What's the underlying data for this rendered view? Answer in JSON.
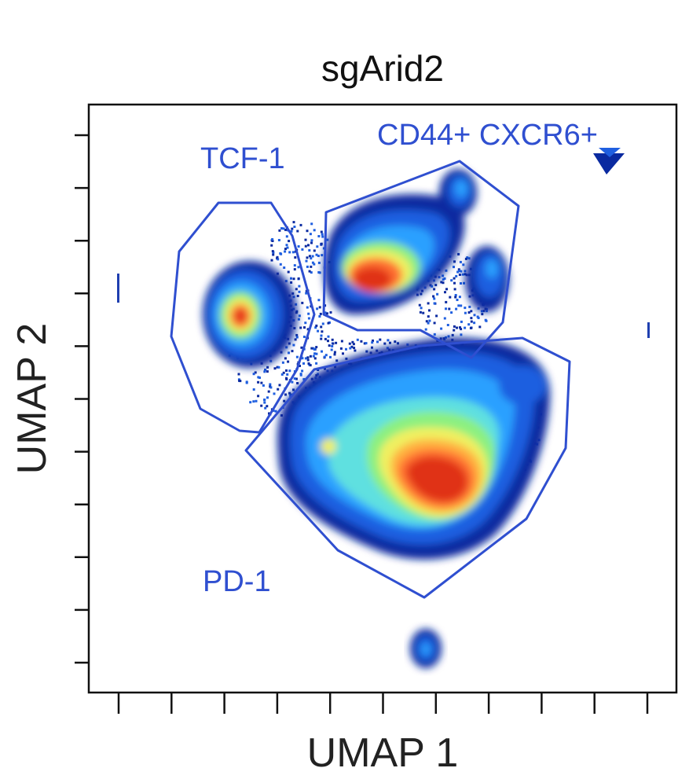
{
  "chart_data": {
    "type": "scatter",
    "subtype": "umap-density",
    "title": "sgArid2",
    "xlabel": "UMAP 1",
    "ylabel": "UMAP 2",
    "x_ticks": 11,
    "y_ticks": 11,
    "tick_labels": "none",
    "grid": false,
    "legend": "none",
    "colormap": [
      "#0a2aa0",
      "#1f5fe0",
      "#2aa0ff",
      "#5fe0e0",
      "#8cf080",
      "#f0f060",
      "#ffb040",
      "#ff7030",
      "#e03018"
    ],
    "gate_color": "#2f4fd0",
    "gates": [
      {
        "label": "TCF-1"
      },
      {
        "label": "CD44+ CXCR6+"
      },
      {
        "label": "PD-1"
      }
    ]
  }
}
